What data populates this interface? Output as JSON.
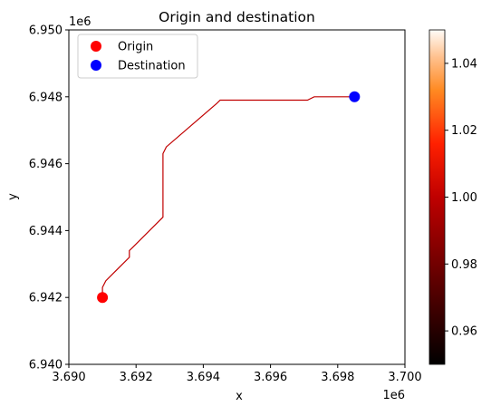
{
  "chart_data": {
    "type": "scatter",
    "title": "Origin and destination",
    "xlabel": "x",
    "ylabel": "y",
    "x_offset_label": "1e6",
    "y_offset_label": "1e6",
    "xlim": [
      3.69,
      3.7
    ],
    "ylim": [
      6.94,
      6.95
    ],
    "x_ticks": [
      3.69,
      3.692,
      3.694,
      3.696,
      3.698,
      3.7
    ],
    "x_tick_labels": [
      "3.690",
      "3.692",
      "3.694",
      "3.696",
      "3.698",
      "3.700"
    ],
    "y_ticks": [
      6.94,
      6.942,
      6.944,
      6.946,
      6.948,
      6.95
    ],
    "y_tick_labels": [
      "6.940",
      "6.942",
      "6.944",
      "6.946",
      "6.948",
      "6.950"
    ],
    "grid": false,
    "legend_position": "top-left",
    "series": [
      {
        "name": "Origin",
        "color": "#ff0000",
        "x": [
          3.691
        ],
        "y": [
          6.942
        ]
      },
      {
        "name": "Destination",
        "color": "#0000ff",
        "x": [
          3.6985
        ],
        "y": [
          6.948
        ]
      }
    ],
    "path": {
      "color": "#c00000",
      "x": [
        3.691,
        3.691,
        3.6911,
        3.6918,
        3.6918,
        3.6919,
        3.6928,
        3.6928,
        3.6929,
        3.6944,
        3.6945,
        3.6971,
        3.6973,
        3.6985
      ],
      "y": [
        6.942,
        6.9423,
        6.9425,
        6.9432,
        6.9434,
        6.9435,
        6.9444,
        6.9463,
        6.9465,
        6.9478,
        6.9479,
        6.9479,
        6.948,
        6.948
      ]
    },
    "colorbar": {
      "colormap": "gist_heat",
      "range": [
        0.95,
        1.05
      ],
      "ticks": [
        0.96,
        0.98,
        1.0,
        1.02,
        1.04
      ],
      "tick_labels": [
        "0.96",
        "0.98",
        "1.00",
        "1.02",
        "1.04"
      ]
    }
  }
}
